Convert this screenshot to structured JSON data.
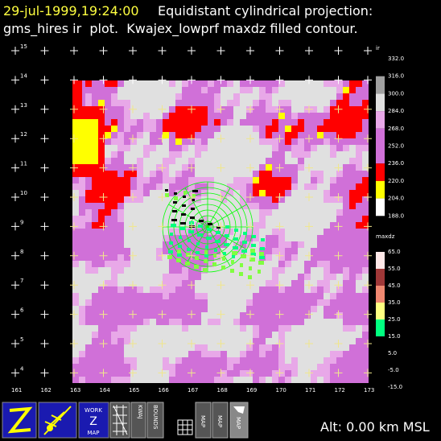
{
  "header": {
    "timestamp": "29-jul-1999,19:24:00",
    "projection": "Equidistant cylindrical projection:",
    "plot_description": "gms_hires ir  plot.  Kwajex_lowprf maxdz filled contour."
  },
  "map": {
    "lat_labels": [
      "15",
      "14",
      "13",
      "12",
      "11",
      "10",
      "9",
      "8",
      "7",
      "6",
      "5",
      "4"
    ],
    "lon_labels": [
      "161",
      "162",
      "163",
      "164",
      "165",
      "166",
      "167",
      "168",
      "169",
      "170",
      "171",
      "172",
      "173"
    ]
  },
  "legends": [
    {
      "title": "ir",
      "labels": [
        "332.0",
        "316.0",
        "300.0",
        "284.0",
        "268.0",
        "252.0",
        "236.0",
        "220.0",
        "204.0",
        "188.0"
      ]
    },
    {
      "title": "maxdz",
      "labels": [
        "65.0",
        "55.0",
        "45.0",
        "35.0",
        "25.0",
        "15.0",
        "5.0",
        "-5.0",
        "-15.0"
      ]
    }
  ],
  "toolbar": {
    "work_map": [
      "WORK",
      "Z",
      "MAP"
    ],
    "kwaj": "KWAJ",
    "bounds": "BOUNDS",
    "map_buttons": [
      "MAP",
      "MAP",
      "MAP"
    ]
  },
  "status": {
    "altitude": "Alt: 0.00 km MSL"
  }
}
